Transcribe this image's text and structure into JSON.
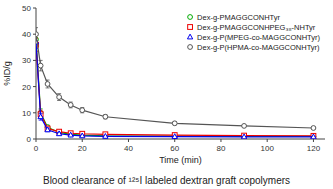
{
  "chart_data": {
    "type": "line",
    "title": "Blood clearance of ¹²⁵I labeled dextran graft copolymers",
    "x_label": "Time (min)",
    "y_label": "%ID/g",
    "x": [
      0,
      2,
      5,
      10,
      15,
      20,
      30,
      60,
      90,
      120
    ],
    "series": [
      {
        "name": "Dex-g-PMAGGCONHTyr",
        "color": "#00AA00",
        "marker": "circle",
        "values": [
          38,
          10,
          4.5,
          2.5,
          1.8,
          1.5,
          1.2,
          1.1,
          1.0,
          1.0
        ],
        "errors": [
          2.5,
          1.5,
          0.8,
          0.5,
          0.4,
          0.3,
          0.2,
          0.2,
          0.15,
          0.15
        ]
      },
      {
        "name": "Dex-g-PMAGGCONHPEG₃₈-NHTyr",
        "color": "#EE0000",
        "marker": "square",
        "values": [
          36,
          9.5,
          4.0,
          2.8,
          2.2,
          2.0,
          1.8,
          1.5,
          1.3,
          1.2
        ],
        "errors": [
          2.5,
          1.5,
          0.8,
          0.6,
          0.5,
          0.4,
          0.3,
          0.3,
          0.2,
          0.2
        ]
      },
      {
        "name": "Dex-g-P(MPEG-co-MAGGCONHTyr)",
        "color": "#0000EE",
        "marker": "triangle",
        "values": [
          37,
          8.5,
          3.5,
          2.0,
          1.5,
          1.2,
          1.0,
          0.9,
          0.8,
          0.8
        ],
        "errors": [
          2.5,
          1.3,
          0.7,
          0.5,
          0.4,
          0.3,
          0.2,
          0.2,
          0.15,
          0.15
        ]
      },
      {
        "name": "Dex-g-P(HPMA-co-MAGGCONHTyr)",
        "color": "#555555",
        "marker": "circle",
        "values": [
          40,
          28,
          21,
          16,
          13,
          11,
          8.5,
          6.0,
          5.0,
          4.2
        ],
        "errors": [
          2.5,
          2.0,
          1.5,
          1.3,
          1.1,
          1.0,
          0.8,
          0.6,
          0.5,
          0.4
        ]
      }
    ],
    "xlim": [
      0,
      125
    ],
    "ylim": [
      0,
      50
    ],
    "xticks": [
      0,
      20,
      40,
      60,
      80,
      100,
      120
    ],
    "yticks": [
      0,
      10,
      20,
      30,
      40,
      50
    ],
    "grid": false,
    "legend": "upper right"
  }
}
